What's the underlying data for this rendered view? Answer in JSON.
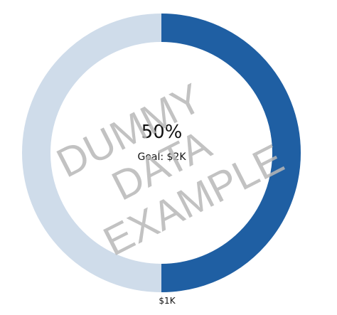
{
  "gauge": {
    "progress_value": 0.5,
    "progress_label": "50%",
    "goal_label": "Goal: $2K",
    "current_label": "$1K",
    "fill_color": "#1f5fa3",
    "track_color": "#cfdcea"
  },
  "watermark": {
    "lines": [
      "DUMMY",
      "DATA",
      "EXAMPLE"
    ],
    "color": "#b8b8b8"
  }
}
